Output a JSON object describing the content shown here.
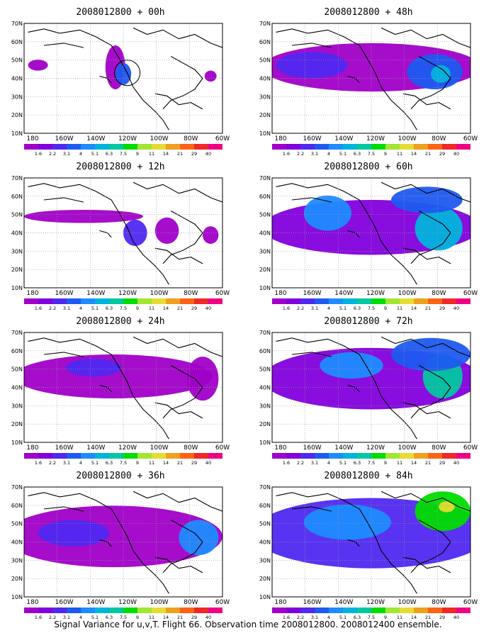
{
  "panels": [
    {
      "title": "2008012800 + 00h"
    },
    {
      "title": "2008012800 + 48h"
    },
    {
      "title": "2008012800 + 12h"
    },
    {
      "title": "2008012800 + 60h"
    },
    {
      "title": "2008012800 + 24h"
    },
    {
      "title": "2008012800 + 72h"
    },
    {
      "title": "2008012800 + 36h"
    },
    {
      "title": "2008012800 + 84h"
    }
  ],
  "axes": {
    "lat_labels": [
      "10N",
      "20N",
      "30N",
      "40N",
      "50N",
      "60N",
      "70N"
    ],
    "lon_labels": [
      "180",
      "160W",
      "140W",
      "120W",
      "100W",
      "80W",
      "60W"
    ]
  },
  "colorbar": {
    "labels": [
      "1.6",
      "2.2",
      "3.1",
      "4",
      "5.1",
      "6.3",
      "7.5",
      "9",
      "11",
      "14",
      "21",
      "29",
      "40"
    ],
    "colors": [
      "#a000c8",
      "#8200dc",
      "#5028f0",
      "#1e5af0",
      "#1e8cff",
      "#00b4dc",
      "#00c8a0",
      "#00dc00",
      "#a0e632",
      "#e6dc32",
      "#f0a01e",
      "#fa6414",
      "#f02828",
      "#f00082"
    ]
  },
  "footer": "Signal Variance for u,v,T. Flight 66. Observation time 2008012800. 2008012400 ensemble."
}
